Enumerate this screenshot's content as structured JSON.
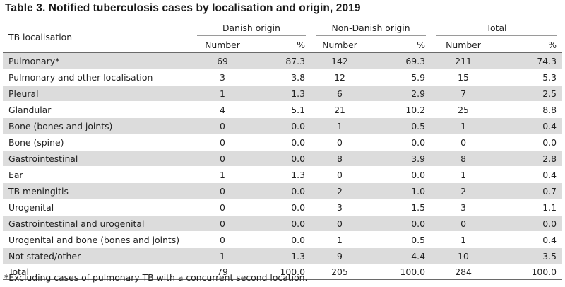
{
  "title": "Table 3. Notified tuberculosis cases by localisation and origin, 2019",
  "header": {
    "localisation_label": "TB localisation",
    "groups": [
      "Danish origin",
      "Non-Danish origin",
      "Total"
    ],
    "sub": {
      "number": "Number",
      "percent": "%"
    }
  },
  "rows": [
    {
      "label": "Pulmonary*",
      "values": [
        "69",
        "87.3",
        "142",
        "69.3",
        "211",
        "74.3"
      ]
    },
    {
      "label": "Pulmonary and other localisation",
      "values": [
        "3",
        "3.8",
        "12",
        "5.9",
        "15",
        "5.3"
      ]
    },
    {
      "label": "Pleural",
      "values": [
        "1",
        "1.3",
        "6",
        "2.9",
        "7",
        "2.5"
      ]
    },
    {
      "label": "Glandular",
      "values": [
        "4",
        "5.1",
        "21",
        "10.2",
        "25",
        "8.8"
      ]
    },
    {
      "label": "Bone (bones and joints)",
      "values": [
        "0",
        "0.0",
        "1",
        "0.5",
        "1",
        "0.4"
      ]
    },
    {
      "label": "Bone (spine)",
      "values": [
        "0",
        "0.0",
        "0",
        "0.0",
        "0",
        "0.0"
      ]
    },
    {
      "label": "Gastrointestinal",
      "values": [
        "0",
        "0.0",
        "8",
        "3.9",
        "8",
        "2.8"
      ]
    },
    {
      "label": "Ear",
      "values": [
        "1",
        "1.3",
        "0",
        "0.0",
        "1",
        "0.4"
      ]
    },
    {
      "label": "TB meningitis",
      "values": [
        "0",
        "0.0",
        "2",
        "1.0",
        "2",
        "0.7"
      ]
    },
    {
      "label": "Urogenital",
      "values": [
        "0",
        "0.0",
        "3",
        "1.5",
        "3",
        "1.1"
      ]
    },
    {
      "label": "Gastrointestinal and urogenital",
      "values": [
        "0",
        "0.0",
        "0",
        "0.0",
        "0",
        "0.0"
      ]
    },
    {
      "label": "Urogenital and bone (bones and joints)",
      "values": [
        "0",
        "0.0",
        "1",
        "0.5",
        "1",
        "0.4"
      ]
    },
    {
      "label": "Not stated/other",
      "values": [
        "1",
        "1.3",
        "9",
        "4.4",
        "10",
        "3.5"
      ]
    }
  ],
  "total": {
    "label": "Total",
    "values": [
      "79",
      "100.0",
      "205",
      "100.0",
      "284",
      "100.0"
    ]
  },
  "footnote": "*Excluding cases of pulmonary TB with a concurrent second location.",
  "colors": {
    "shade": "#dcdcdc",
    "rule": "#6a6a6a",
    "text": "#222222"
  }
}
